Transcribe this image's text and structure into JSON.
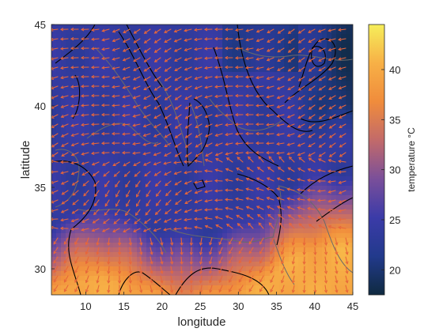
{
  "chart_data": {
    "type": "heatmap",
    "title": "",
    "xlabel": "longitude",
    "ylabel": "latitude",
    "xlim": [
      5.5,
      45
    ],
    "ylim": [
      28.4,
      45
    ],
    "x_ticks": [
      10,
      15,
      20,
      25,
      30,
      35,
      40,
      45
    ],
    "y_ticks": [
      30,
      35,
      40,
      45
    ],
    "overlays": [
      "temperature field",
      "wind vectors",
      "black contour lines",
      "gray coastlines"
    ],
    "colorbar": {
      "label": "temperature °C",
      "range": [
        17.5,
        44.5
      ],
      "ticks": [
        20,
        25,
        30,
        35,
        40
      ],
      "colors": [
        "#0f2a40",
        "#223a8c",
        "#3b3ba8",
        "#7a4f9a",
        "#c26a6a",
        "#f08c3c",
        "#f7b046",
        "#f6ee5a"
      ]
    },
    "arrow_color": "#e8663a",
    "contour_color": "#000000",
    "coast_color": "#6a6a6a"
  }
}
